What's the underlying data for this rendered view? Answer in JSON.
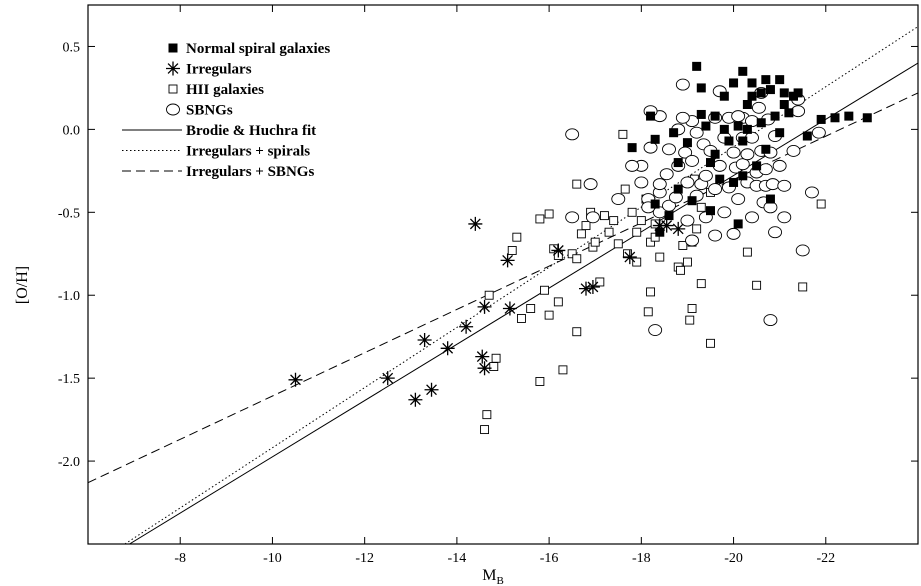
{
  "chart_data": {
    "type": "scatter",
    "title": "",
    "xlabel": "M",
    "xlabel_subscript": "B",
    "ylabel": "[O/H]",
    "xlim": [
      -6.0,
      -24.0
    ],
    "ylim": [
      -2.5,
      0.75
    ],
    "x_axis_reversed": true,
    "grid": false,
    "legend_placement": "top-left",
    "x_ticks": [
      -8,
      -10,
      -12,
      -14,
      -16,
      -18,
      -20,
      -22
    ],
    "x_tick_labels": [
      "-8",
      "-10",
      "-12",
      "-14",
      "-16",
      "-18",
      "-20",
      "-22"
    ],
    "y_ticks": [
      0.5,
      0.0,
      -0.5,
      -1.0,
      -1.5,
      -2.0
    ],
    "y_tick_labels": [
      "0.5",
      "0.0",
      "-0.5",
      "-1.0",
      "-1.5",
      "-2.0"
    ],
    "series": [
      {
        "name": "Normal spiral galaxies",
        "marker": "filled-square",
        "points": [
          [
            -19.2,
            0.38
          ],
          [
            -19.3,
            0.25
          ],
          [
            -18.2,
            0.08
          ],
          [
            -17.8,
            -0.11
          ],
          [
            -18.8,
            -0.2
          ],
          [
            -18.3,
            -0.06
          ],
          [
            -18.7,
            -0.02
          ],
          [
            -19.0,
            -0.08
          ],
          [
            -19.3,
            0.09
          ],
          [
            -19.6,
            0.08
          ],
          [
            -19.8,
            0.2
          ],
          [
            -20.0,
            0.28
          ],
          [
            -20.2,
            0.35
          ],
          [
            -20.4,
            0.28
          ],
          [
            -20.4,
            0.2
          ],
          [
            -20.6,
            0.22
          ],
          [
            -20.7,
            0.3
          ],
          [
            -20.8,
            0.24
          ],
          [
            -21.0,
            0.3
          ],
          [
            -21.1,
            0.22
          ],
          [
            -21.3,
            0.2
          ],
          [
            -21.4,
            0.22
          ],
          [
            -20.3,
            0.0
          ],
          [
            -20.1,
            0.02
          ],
          [
            -19.8,
            0.0
          ],
          [
            -20.6,
            0.04
          ],
          [
            -20.9,
            0.08
          ],
          [
            -21.2,
            0.1
          ],
          [
            -21.0,
            -0.02
          ],
          [
            -20.2,
            -0.07
          ],
          [
            -19.9,
            -0.07
          ],
          [
            -19.6,
            -0.15
          ],
          [
            -19.5,
            -0.2
          ],
          [
            -19.7,
            -0.3
          ],
          [
            -20.0,
            -0.32
          ],
          [
            -20.2,
            -0.28
          ],
          [
            -21.6,
            -0.04
          ],
          [
            -21.9,
            0.06
          ],
          [
            -22.2,
            0.07
          ],
          [
            -22.5,
            0.08
          ],
          [
            -22.9,
            0.07
          ],
          [
            -18.3,
            -0.45
          ],
          [
            -18.6,
            -0.52
          ],
          [
            -20.1,
            -0.57
          ],
          [
            -20.8,
            -0.42
          ],
          [
            -18.8,
            -0.36
          ],
          [
            -19.1,
            -0.43
          ],
          [
            -19.5,
            -0.49
          ],
          [
            -20.5,
            -0.22
          ],
          [
            -20.7,
            -0.12
          ],
          [
            -19.4,
            0.02
          ],
          [
            -20.3,
            0.15
          ],
          [
            -21.1,
            0.15
          ],
          [
            -18.4,
            -0.62
          ]
        ]
      },
      {
        "name": "Irregulars",
        "marker": "asterisk",
        "points": [
          [
            -10.5,
            -1.51
          ],
          [
            -12.5,
            -1.5
          ],
          [
            -13.1,
            -1.63
          ],
          [
            -13.3,
            -1.27
          ],
          [
            -13.45,
            -1.57
          ],
          [
            -13.8,
            -1.32
          ],
          [
            -14.2,
            -1.19
          ],
          [
            -14.4,
            -0.57
          ],
          [
            -14.6,
            -1.07
          ],
          [
            -14.55,
            -1.37
          ],
          [
            -14.6,
            -1.44
          ],
          [
            -15.1,
            -0.79
          ],
          [
            -15.15,
            -1.08
          ],
          [
            -16.2,
            -0.73
          ],
          [
            -16.8,
            -0.96
          ],
          [
            -16.95,
            -0.95
          ],
          [
            -17.75,
            -0.77
          ],
          [
            -18.4,
            -0.58
          ],
          [
            -18.55,
            -0.58
          ],
          [
            -18.8,
            -0.6
          ]
        ]
      },
      {
        "name": "HII galaxies",
        "marker": "open-square",
        "points": [
          [
            -14.6,
            -1.81
          ],
          [
            -14.65,
            -1.72
          ],
          [
            -14.7,
            -1.0
          ],
          [
            -14.8,
            -1.43
          ],
          [
            -14.85,
            -1.38
          ],
          [
            -15.2,
            -0.73
          ],
          [
            -15.3,
            -0.65
          ],
          [
            -15.4,
            -1.14
          ],
          [
            -15.6,
            -1.08
          ],
          [
            -15.8,
            -1.52
          ],
          [
            -15.8,
            -0.54
          ],
          [
            -15.9,
            -0.97
          ],
          [
            -16.0,
            -1.12
          ],
          [
            -16.0,
            -0.51
          ],
          [
            -16.1,
            -0.72
          ],
          [
            -16.2,
            -1.04
          ],
          [
            -16.2,
            -0.76
          ],
          [
            -16.3,
            -1.45
          ],
          [
            -16.5,
            -0.75
          ],
          [
            -16.6,
            -0.78
          ],
          [
            -16.6,
            -0.33
          ],
          [
            -16.6,
            -1.22
          ],
          [
            -16.7,
            -0.63
          ],
          [
            -16.8,
            -0.58
          ],
          [
            -16.9,
            -0.5
          ],
          [
            -16.95,
            -0.71
          ],
          [
            -17.0,
            -0.68
          ],
          [
            -17.1,
            -0.92
          ],
          [
            -17.2,
            -0.52
          ],
          [
            -17.3,
            -0.62
          ],
          [
            -17.4,
            -0.55
          ],
          [
            -17.5,
            -0.69
          ],
          [
            -17.6,
            -0.03
          ],
          [
            -17.65,
            -0.36
          ],
          [
            -17.7,
            -0.75
          ],
          [
            -17.8,
            -0.5
          ],
          [
            -17.9,
            -0.8
          ],
          [
            -17.9,
            -0.62
          ],
          [
            -18.0,
            -0.55
          ],
          [
            -18.1,
            -0.42
          ],
          [
            -18.2,
            -0.68
          ],
          [
            -18.2,
            -0.98
          ],
          [
            -18.3,
            -0.65
          ],
          [
            -18.3,
            -0.57
          ],
          [
            -18.4,
            -0.77
          ],
          [
            -18.15,
            -1.1
          ],
          [
            -18.6,
            -0.5
          ],
          [
            -18.8,
            -0.83
          ],
          [
            -18.85,
            -0.85
          ],
          [
            -18.9,
            -0.7
          ],
          [
            -19.0,
            -0.55
          ],
          [
            -19.1,
            -0.68
          ],
          [
            -19.1,
            -1.08
          ],
          [
            -19.2,
            -0.6
          ],
          [
            -19.3,
            -0.93
          ],
          [
            -19.5,
            -1.29
          ],
          [
            -19.5,
            -0.38
          ],
          [
            -20.3,
            -0.74
          ],
          [
            -20.5,
            -0.94
          ],
          [
            -21.5,
            -0.95
          ],
          [
            -21.9,
            -0.45
          ],
          [
            -19.0,
            -0.8
          ],
          [
            -19.05,
            -1.15
          ],
          [
            -19.15,
            -0.3
          ],
          [
            -19.3,
            -0.47
          ]
        ]
      },
      {
        "name": "SBNGs",
        "marker": "open-circle",
        "points": [
          [
            -18.0,
            -0.32
          ],
          [
            -18.0,
            -0.22
          ],
          [
            -18.15,
            -0.42
          ],
          [
            -18.2,
            -0.11
          ],
          [
            -18.4,
            -0.5
          ],
          [
            -18.4,
            -0.38
          ],
          [
            -18.4,
            0.08
          ],
          [
            -18.55,
            -0.27
          ],
          [
            -18.6,
            -0.12
          ],
          [
            -18.6,
            -0.46
          ],
          [
            -18.75,
            -0.41
          ],
          [
            -18.8,
            -0.22
          ],
          [
            -18.8,
            0.0
          ],
          [
            -18.9,
            0.27
          ],
          [
            -18.95,
            -0.14
          ],
          [
            -19.0,
            -0.55
          ],
          [
            -19.0,
            -0.32
          ],
          [
            -19.1,
            -0.19
          ],
          [
            -19.1,
            0.05
          ],
          [
            -19.2,
            -0.02
          ],
          [
            -19.2,
            -0.4
          ],
          [
            -19.3,
            -0.33
          ],
          [
            -19.35,
            -0.09
          ],
          [
            -19.4,
            -0.28
          ],
          [
            -19.4,
            -0.53
          ],
          [
            -19.5,
            -0.13
          ],
          [
            -19.6,
            0.07
          ],
          [
            -19.6,
            -0.36
          ],
          [
            -19.7,
            -0.22
          ],
          [
            -19.7,
            0.23
          ],
          [
            -19.8,
            -0.5
          ],
          [
            -19.8,
            -0.05
          ],
          [
            -19.9,
            -0.35
          ],
          [
            -19.9,
            0.07
          ],
          [
            -20.0,
            -0.14
          ],
          [
            -20.0,
            -0.63
          ],
          [
            -20.05,
            -0.23
          ],
          [
            -20.1,
            -0.42
          ],
          [
            -20.2,
            -0.05
          ],
          [
            -20.2,
            -0.21
          ],
          [
            -20.2,
            0.07
          ],
          [
            -20.3,
            -0.32
          ],
          [
            -20.3,
            -0.15
          ],
          [
            -20.4,
            -0.53
          ],
          [
            -20.4,
            -0.05
          ],
          [
            -20.4,
            0.05
          ],
          [
            -20.5,
            -0.34
          ],
          [
            -20.5,
            -0.26
          ],
          [
            -20.55,
            0.13
          ],
          [
            -20.6,
            -0.13
          ],
          [
            -20.65,
            -0.44
          ],
          [
            -20.7,
            -0.34
          ],
          [
            -20.7,
            -0.24
          ],
          [
            -20.75,
            0.06
          ],
          [
            -20.8,
            -0.14
          ],
          [
            -20.8,
            -0.47
          ],
          [
            -20.85,
            -0.33
          ],
          [
            -20.9,
            -0.62
          ],
          [
            -20.9,
            -0.04
          ],
          [
            -21.0,
            -0.22
          ],
          [
            -21.1,
            -0.34
          ],
          [
            -21.1,
            -0.53
          ],
          [
            -21.3,
            -0.13
          ],
          [
            -21.4,
            0.11
          ],
          [
            -21.5,
            -0.73
          ],
          [
            -21.7,
            -0.38
          ],
          [
            -21.85,
            -0.02
          ],
          [
            -20.8,
            -1.15
          ],
          [
            -16.5,
            -0.53
          ],
          [
            -16.5,
            -0.03
          ],
          [
            -16.9,
            -0.33
          ],
          [
            -16.95,
            -0.53
          ],
          [
            -17.5,
            -0.42
          ],
          [
            -17.8,
            -0.22
          ],
          [
            -18.2,
            0.11
          ],
          [
            -18.9,
            0.07
          ],
          [
            -19.1,
            -0.67
          ],
          [
            -18.15,
            -0.47
          ],
          [
            -18.4,
            -0.33
          ],
          [
            -18.3,
            -1.21
          ],
          [
            -20.6,
            0.22
          ],
          [
            -20.1,
            0.08
          ],
          [
            -21.4,
            0.18
          ],
          [
            -19.6,
            -0.64
          ]
        ]
      },
      {
        "name": "Brodie & Huchra fit",
        "marker": "line-solid",
        "line": [
          [
            -6.9,
            -2.5
          ],
          [
            -24.0,
            0.4
          ]
        ]
      },
      {
        "name": "Irregulars + spirals",
        "marker": "line-dotted",
        "line": [
          [
            -6.8,
            -2.5
          ],
          [
            -24.0,
            0.62
          ]
        ]
      },
      {
        "name": "Irregulars + SBNGs",
        "marker": "line-dashed",
        "line": [
          [
            -6.0,
            -2.13
          ],
          [
            -24.0,
            0.22
          ]
        ]
      }
    ]
  }
}
